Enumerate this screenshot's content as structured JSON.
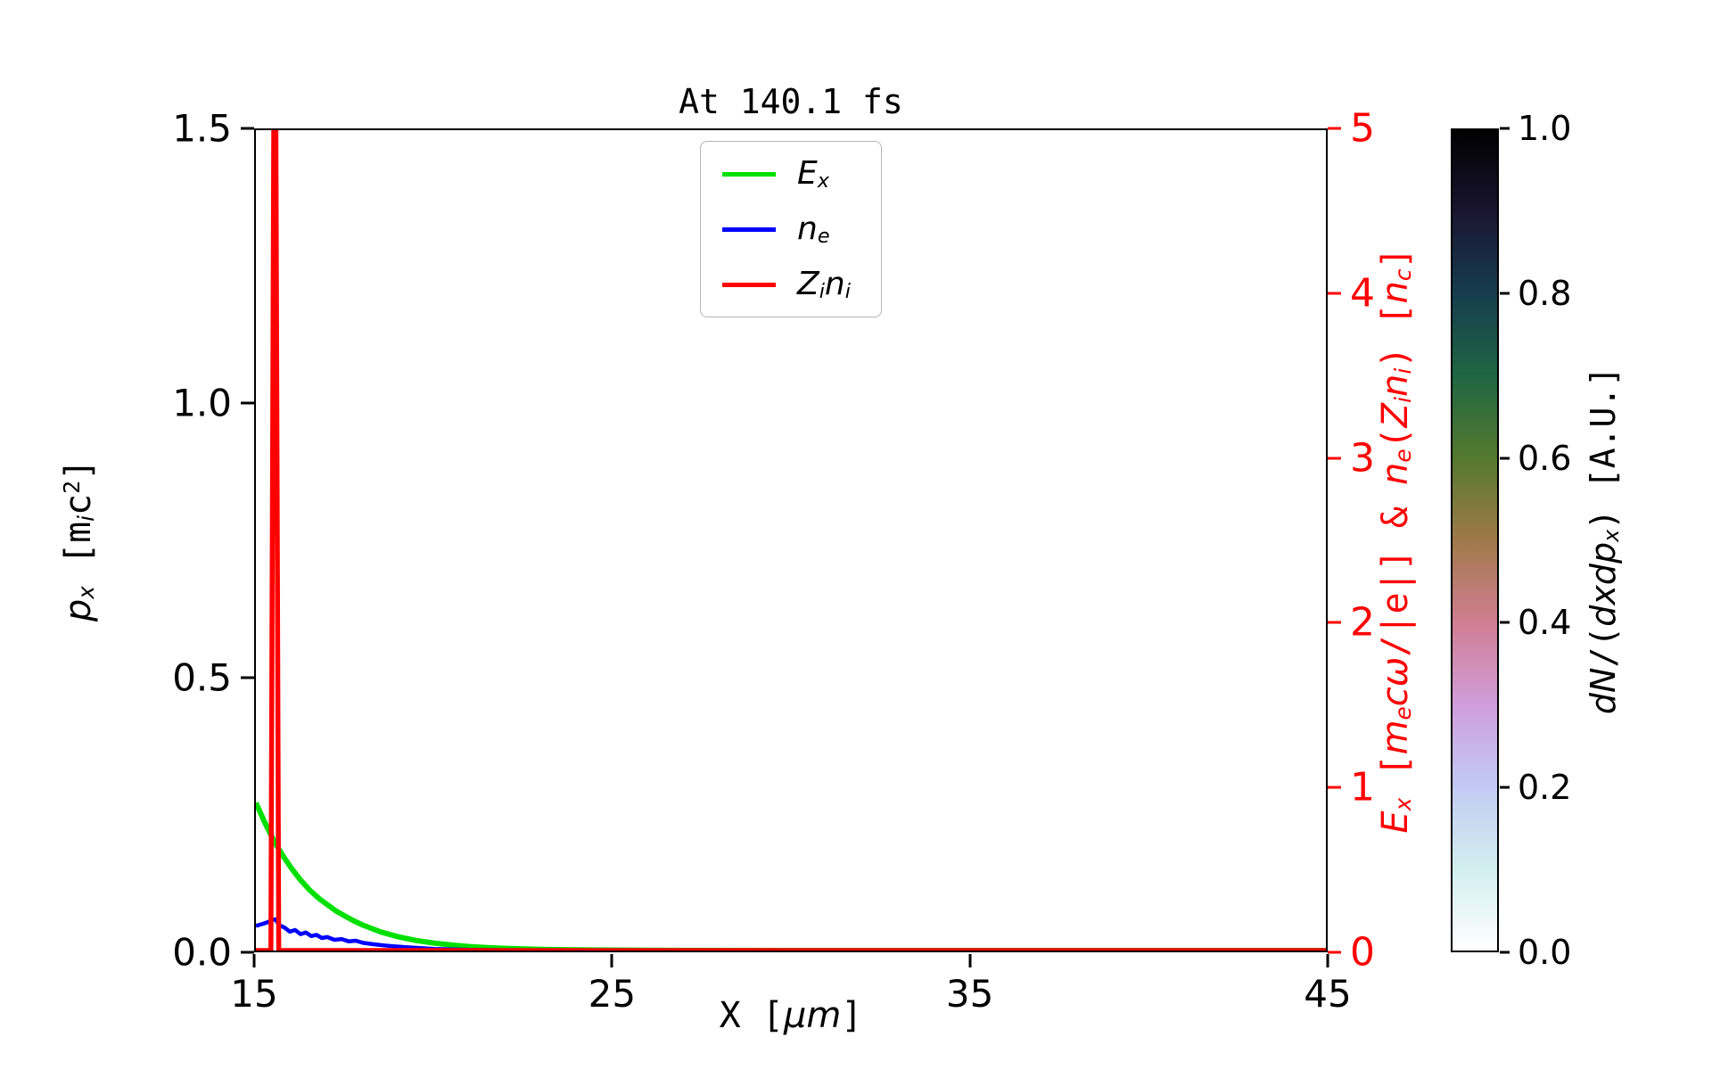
{
  "figure": {
    "background": "#ffffff"
  },
  "labels": {
    "ylabel_left": [
      {
        "t": "p",
        "i": 1
      },
      {
        "t": "x",
        "i": 1,
        "sub": 1
      },
      {
        "t": " ["
      },
      {
        "t": "m"
      },
      {
        "t": "i",
        "i": 1,
        "sub": 1
      },
      {
        "t": "c"
      },
      {
        "t": "2",
        "sup": 1
      },
      {
        "t": "]"
      }
    ],
    "ylabel_right": [
      {
        "t": "E",
        "i": 1
      },
      {
        "t": "x",
        "i": 1,
        "sub": 1
      },
      {
        "t": " ["
      },
      {
        "t": "m",
        "i": 1
      },
      {
        "t": "e",
        "i": 1,
        "sub": 1
      },
      {
        "t": "c",
        "i": 1
      },
      {
        "t": "ω",
        "i": 1
      },
      {
        "t": "/|e|] & "
      },
      {
        "t": "n",
        "i": 1
      },
      {
        "t": "e",
        "i": 1,
        "sub": 1
      },
      {
        "t": "("
      },
      {
        "t": "Z",
        "i": 1
      },
      {
        "t": "i",
        "i": 1,
        "sub": 1
      },
      {
        "t": "n",
        "i": 1
      },
      {
        "t": "i",
        "i": 1,
        "sub": 1
      },
      {
        "t": ") ["
      },
      {
        "t": "n",
        "i": 1
      },
      {
        "t": "c",
        "i": 1,
        "sub": 1
      },
      {
        "t": "]"
      }
    ],
    "xlabel": [
      {
        "t": "X ["
      },
      {
        "t": "μ",
        "i": 1
      },
      {
        "t": "m",
        "i": 1
      },
      {
        "t": "]"
      }
    ],
    "colorbar_label": [
      {
        "t": "d",
        "i": 1
      },
      {
        "t": "N",
        "i": 1
      },
      {
        "t": "/("
      },
      {
        "t": "d",
        "i": 1
      },
      {
        "t": "x",
        "i": 1
      },
      {
        "t": "d",
        "i": 1
      },
      {
        "t": "p",
        "i": 1
      },
      {
        "t": "x",
        "i": 1,
        "sub": 1
      },
      {
        "t": ")"
      },
      {
        "t": " [A.U.]"
      }
    ]
  },
  "axes": {
    "x_ticks": [
      "15",
      "25",
      "35",
      "45"
    ],
    "y_left_ticks": [
      "0.0",
      "0.5",
      "1.0",
      "1.5"
    ],
    "y_right_ticks": [
      "0",
      "1",
      "2",
      "3",
      "4",
      "5"
    ],
    "y_right_color": "#ff0000",
    "axis_color": "#000000"
  },
  "chart_data": {
    "type": "line",
    "title": "At 140.1 fs",
    "xlabel": "X [μm]",
    "ylabel_left": "p_x [m_i c^2]",
    "ylabel_right": "E_x [m_e c ω/|e|] & n_e(Z_i n_i) [n_c]",
    "xlim": [
      15,
      45
    ],
    "ylim_left": [
      0,
      1.5
    ],
    "ylim_right": [
      0,
      5
    ],
    "x_tick_values": [
      15,
      25,
      35,
      45
    ],
    "grid": false,
    "legend_position": "upper center",
    "series": [
      {
        "id": "Ex",
        "name": "E_x",
        "axis": "right",
        "color": "#00e000",
        "linewidth": 6,
        "label_rich": [
          {
            "t": "E",
            "i": 1
          },
          {
            "t": "x",
            "i": 1,
            "sub": 1
          }
        ],
        "x": [
          15.0,
          15.25,
          15.5,
          15.75,
          16.0,
          16.25,
          16.5,
          16.75,
          17.0,
          17.25,
          17.5,
          17.75,
          18.0,
          18.5,
          19.0,
          19.5,
          20.0,
          20.5,
          21.0,
          21.5,
          22.0,
          23.0,
          24.0,
          26.0,
          30.0,
          45.0
        ],
        "values": [
          0.9,
          0.78,
          0.67,
          0.58,
          0.5,
          0.43,
          0.37,
          0.32,
          0.28,
          0.24,
          0.21,
          0.18,
          0.155,
          0.113,
          0.083,
          0.061,
          0.045,
          0.033,
          0.024,
          0.018,
          0.013,
          0.007,
          0.004,
          0.001,
          0.0,
          0.0
        ]
      },
      {
        "id": "ne",
        "name": "n_e",
        "axis": "right",
        "color": "#0000ff",
        "linewidth": 4.5,
        "label_rich": [
          {
            "t": "n",
            "i": 1
          },
          {
            "t": "e",
            "i": 1,
            "sub": 1
          }
        ],
        "x": [
          15.0,
          15.15,
          15.3,
          15.45,
          15.55,
          15.65,
          15.8,
          15.95,
          16.1,
          16.25,
          16.4,
          16.55,
          16.7,
          16.85,
          17.0,
          17.2,
          17.4,
          17.6,
          17.8,
          18.0,
          18.3,
          18.6,
          18.9,
          19.2,
          19.6,
          20.0,
          20.5,
          21.0,
          22.0,
          24.0,
          45.0
        ],
        "values": [
          0.15,
          0.16,
          0.17,
          0.185,
          0.19,
          0.155,
          0.14,
          0.115,
          0.125,
          0.1,
          0.11,
          0.088,
          0.095,
          0.076,
          0.082,
          0.065,
          0.07,
          0.056,
          0.06,
          0.047,
          0.038,
          0.031,
          0.025,
          0.02,
          0.015,
          0.01,
          0.007,
          0.004,
          0.001,
          0.0,
          0.0
        ]
      },
      {
        "id": "Zini",
        "name": "Z_i n_i",
        "axis": "right",
        "color": "#ff0000",
        "linewidth": 5.5,
        "label_rich": [
          {
            "t": "Z",
            "i": 1
          },
          {
            "t": "i",
            "i": 1,
            "sub": 1
          },
          {
            "t": "n",
            "i": 1
          },
          {
            "t": "i",
            "i": 1,
            "sub": 1
          }
        ],
        "x": [
          15.0,
          15.42,
          15.46,
          15.5,
          15.56,
          15.6,
          15.64,
          16.0,
          45.0
        ],
        "values": [
          0.0,
          0.0,
          2.5,
          5.0,
          5.0,
          2.5,
          0.0,
          0.0,
          0.0
        ]
      }
    ],
    "heatmap": {
      "label": "dN/(dx dp_x) [A.U.]",
      "visible_points": [],
      "note_range": [
        0.0,
        1.0
      ]
    },
    "colorbar": {
      "ticks": [
        "0.0",
        "0.2",
        "0.4",
        "0.6",
        "0.8",
        "1.0"
      ],
      "min": 0.0,
      "max": 1.0,
      "stops_bottom_to_top": [
        "#ffffff",
        "#d2eeef",
        "#c2caf3",
        "#d09dda",
        "#d07e92",
        "#a07949",
        "#54792f",
        "#1f6642",
        "#163d4e",
        "#1a1530",
        "#000000"
      ]
    }
  }
}
